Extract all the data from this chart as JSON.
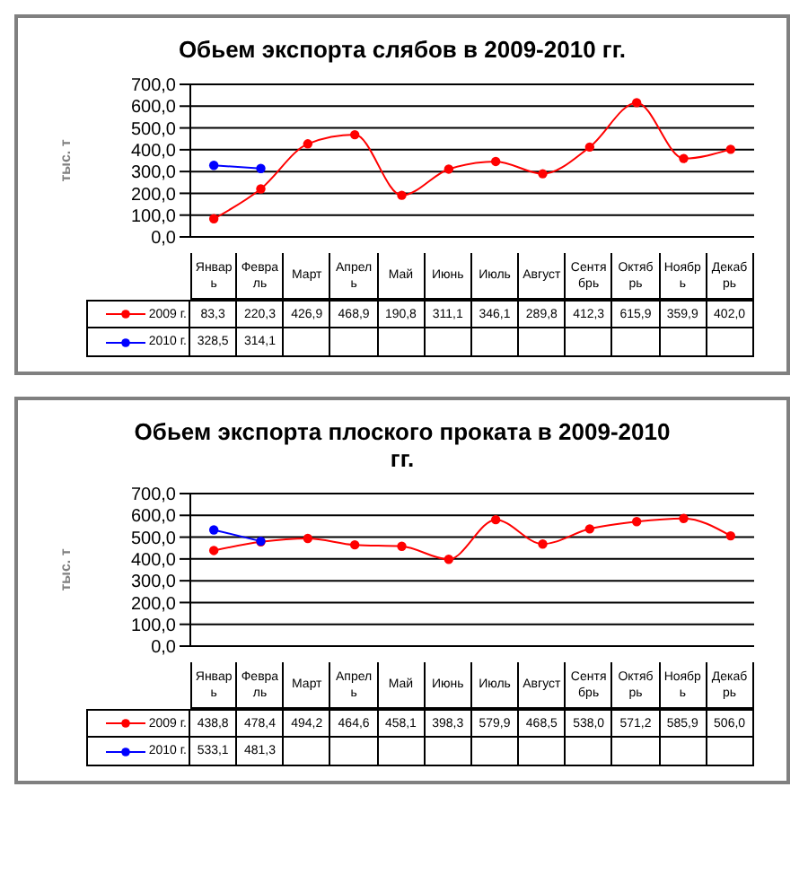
{
  "chart_data": [
    {
      "type": "line",
      "title": "Обьем экспорта слябов в 2009-2010 гг.",
      "ylabel": "тыс. т",
      "categories": [
        "Январь",
        "Февраль",
        "Март",
        "Апрель",
        "Май",
        "Июнь",
        "Июль",
        "Август",
        "Сентябрь",
        "Октябрь",
        "Ноябрь",
        "Декабрь"
      ],
      "series": [
        {
          "name": "2009 г.",
          "color": "#ff0000",
          "values": [
            83.3,
            220.3,
            426.9,
            468.9,
            190.8,
            311.1,
            346.1,
            289.8,
            412.3,
            615.9,
            359.9,
            402.0
          ],
          "value_labels": [
            "83,3",
            "220,3",
            "426,9",
            "468,9",
            "190,8",
            "311,1",
            "346,1",
            "289,8",
            "412,3",
            "615,9",
            "359,9",
            "402,0"
          ]
        },
        {
          "name": "2010 г.",
          "color": "#0000ff",
          "values": [
            328.5,
            314.1,
            null,
            null,
            null,
            null,
            null,
            null,
            null,
            null,
            null,
            null
          ],
          "value_labels": [
            "328,5",
            "314,1",
            null,
            null,
            null,
            null,
            null,
            null,
            null,
            null,
            null,
            null
          ]
        }
      ],
      "ylim": [
        0,
        700
      ],
      "yticks": [
        {
          "value": 0,
          "label": "0,0"
        },
        {
          "value": 100,
          "label": "100,0"
        },
        {
          "value": 200,
          "label": "200,0"
        },
        {
          "value": 300,
          "label": "300,0"
        },
        {
          "value": 400,
          "label": "400,0"
        },
        {
          "value": 500,
          "label": "500,0"
        },
        {
          "value": 600,
          "label": "600,0"
        },
        {
          "value": 700,
          "label": "700,0"
        }
      ],
      "grid": "y",
      "legend": "bottom left",
      "marker": "circle",
      "line_style": "solid"
    },
    {
      "type": "line",
      "title": "Обьем экспорта плоского проката в 2009-2010 гг.",
      "ylabel": "тыс. т",
      "categories": [
        "Январь",
        "Февраль",
        "Март",
        "Апрель",
        "Май",
        "Июнь",
        "Июль",
        "Август",
        "Сентябрь",
        "Октябрь",
        "Ноябрь",
        "Декабрь"
      ],
      "series": [
        {
          "name": "2009 г.",
          "color": "#ff0000",
          "values": [
            438.8,
            478.4,
            494.2,
            464.6,
            458.1,
            398.3,
            579.9,
            468.5,
            538.0,
            571.2,
            585.9,
            506.0
          ],
          "value_labels": [
            "438,8",
            "478,4",
            "494,2",
            "464,6",
            "458,1",
            "398,3",
            "579,9",
            "468,5",
            "538,0",
            "571,2",
            "585,9",
            "506,0"
          ]
        },
        {
          "name": "2010 г.",
          "color": "#0000ff",
          "values": [
            533.1,
            481.3,
            null,
            null,
            null,
            null,
            null,
            null,
            null,
            null,
            null,
            null
          ],
          "value_labels": [
            "533,1",
            "481,3",
            null,
            null,
            null,
            null,
            null,
            null,
            null,
            null,
            null,
            null
          ]
        }
      ],
      "ylim": [
        0,
        700
      ],
      "yticks": [
        {
          "value": 0,
          "label": "0,0"
        },
        {
          "value": 100,
          "label": "100,0"
        },
        {
          "value": 200,
          "label": "200,0"
        },
        {
          "value": 300,
          "label": "300,0"
        },
        {
          "value": 400,
          "label": "400,0"
        },
        {
          "value": 500,
          "label": "500,0"
        },
        {
          "value": 600,
          "label": "600,0"
        },
        {
          "value": 700,
          "label": "700,0"
        }
      ],
      "grid": "y",
      "legend": "bottom left",
      "marker": "circle",
      "line_style": "solid"
    }
  ]
}
